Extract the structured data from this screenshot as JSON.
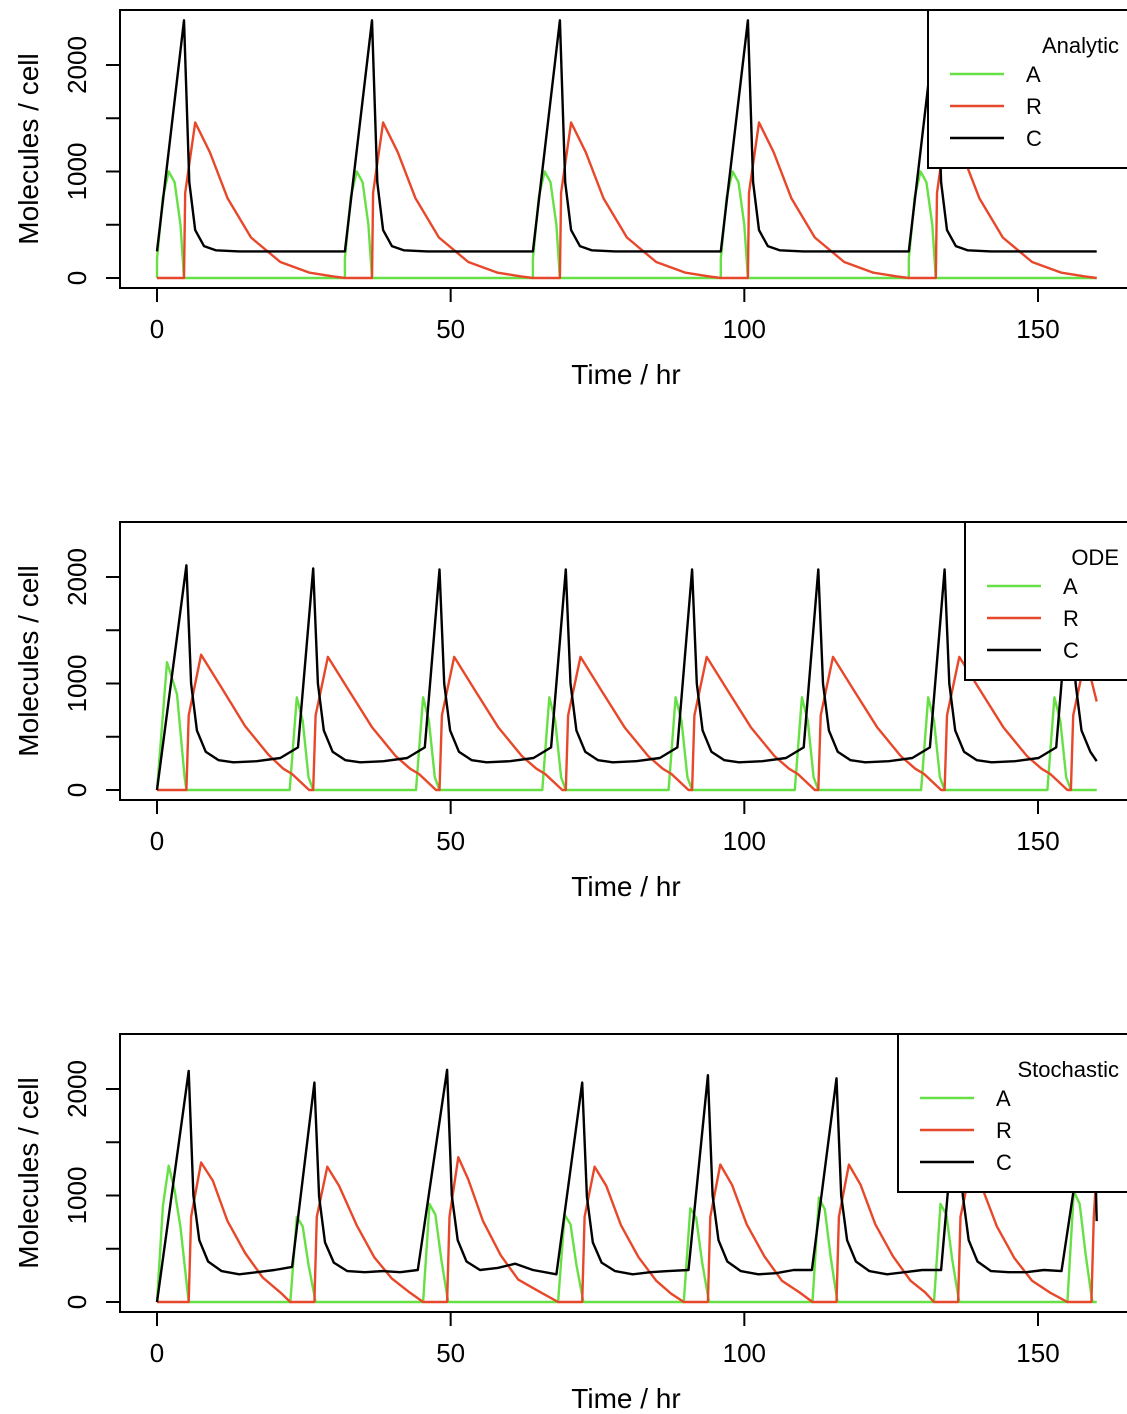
{
  "colors": {
    "A": "#66e044",
    "R": "#e8482a",
    "C": "#000000"
  },
  "chart_data": [
    {
      "type": "line",
      "legend_title": "Analytic",
      "legend_position": "top-right",
      "xlabel": "Time / hr",
      "ylabel": "Molecules / cell",
      "xlim": [
        -6,
        160
      ],
      "ylim": [
        -50,
        2500
      ],
      "x_ticks": [
        0,
        50,
        100,
        150
      ],
      "y_ticks": [
        0,
        1000,
        2000
      ],
      "y_minor_ticks": [
        500,
        1500
      ],
      "grid": false,
      "series": [
        {
          "name": "A",
          "x": [
            0.0,
            0.0,
            1.0,
            2.0,
            3.0,
            4.0,
            4.6,
            32.0,
            32.0,
            33.0,
            34.0,
            35.0,
            36.0,
            36.6,
            64.0,
            64.0,
            65.0,
            66.0,
            67.0,
            68.0,
            68.6,
            96.0,
            96.0,
            97.0,
            98.0,
            99.0,
            100.0,
            100.6,
            128.0,
            128.0,
            129.0,
            130.0,
            131.0,
            132.0,
            132.6,
            160
          ],
          "y": [
            0,
            180,
            760,
            1000,
            900,
            500,
            0,
            0,
            180,
            760,
            1000,
            900,
            500,
            0,
            0,
            180,
            760,
            1000,
            900,
            500,
            0,
            0,
            180,
            760,
            1000,
            900,
            500,
            0,
            0,
            180,
            760,
            1000,
            900,
            500,
            0,
            0
          ]
        },
        {
          "name": "R",
          "x": [
            0.0,
            4.6,
            4.8,
            6.5,
            9,
            12,
            16,
            21,
            26,
            30,
            32.0,
            36.6,
            36.8,
            38.5,
            41,
            44,
            48,
            53,
            58,
            62,
            64.0,
            68.6,
            68.8,
            70.5,
            73,
            76,
            80,
            85,
            90,
            94,
            96.0,
            100.6,
            100.8,
            102.5,
            105,
            108,
            112,
            117,
            122,
            126,
            128.0,
            132.6,
            132.8,
            134.5,
            137,
            140,
            144,
            149,
            154,
            158,
            160
          ],
          "y": [
            0,
            0,
            800,
            1460,
            1180,
            750,
            380,
            150,
            50,
            15,
            0,
            0,
            800,
            1460,
            1180,
            750,
            380,
            150,
            50,
            15,
            0,
            0,
            800,
            1460,
            1180,
            750,
            380,
            150,
            50,
            15,
            0,
            0,
            800,
            1460,
            1180,
            750,
            380,
            150,
            50,
            15,
            0,
            0,
            800,
            1460,
            1180,
            750,
            380,
            150,
            50,
            15,
            0
          ]
        },
        {
          "name": "C",
          "x": [
            0.0,
            4.6,
            5.5,
            6.5,
            8,
            10,
            14,
            32.0,
            36.6,
            37.5,
            38.5,
            40,
            42,
            46,
            64.0,
            68.6,
            69.5,
            70.5,
            72,
            74,
            78,
            96.0,
            100.6,
            101.5,
            102.5,
            104,
            106,
            110,
            128.0,
            132.6,
            133.5,
            134.5,
            136,
            138,
            142,
            160
          ],
          "y": [
            250,
            2420,
            900,
            450,
            300,
            260,
            250,
            250,
            2420,
            900,
            450,
            300,
            260,
            250,
            250,
            2420,
            900,
            450,
            300,
            260,
            250,
            250,
            2420,
            900,
            450,
            300,
            260,
            250,
            250,
            2420,
            900,
            450,
            300,
            260,
            250,
            250
          ]
        }
      ]
    },
    {
      "type": "line",
      "legend_title": "ODE",
      "legend_position": "top-right",
      "xlabel": "Time / hr",
      "ylabel": "Molecules / cell",
      "xlim": [
        -6,
        160
      ],
      "ylim": [
        -50,
        2500
      ],
      "x_ticks": [
        0,
        50,
        100,
        150
      ],
      "y_ticks": [
        0,
        1000,
        2000
      ],
      "y_minor_ticks": [
        500,
        1500
      ],
      "grid": false,
      "series": [
        {
          "name": "A",
          "x": [
            0,
            1.7,
            3.4,
            4.7,
            5.0,
            22.6,
            23.8,
            24.8,
            25.8,
            26.6,
            44.1,
            45.3,
            46.3,
            47.3,
            48.1,
            65.6,
            66.8,
            67.8,
            68.8,
            69.6,
            87.1,
            88.3,
            89.3,
            90.3,
            91.1,
            108.6,
            109.8,
            110.8,
            111.8,
            112.6,
            130.1,
            131.3,
            132.3,
            133.3,
            134.1,
            151.6,
            152.8,
            153.8,
            154.8,
            155.6,
            160
          ],
          "y": [
            0,
            1200,
            900,
            120,
            0,
            0,
            870,
            650,
            120,
            0,
            0,
            870,
            650,
            120,
            0,
            0,
            870,
            650,
            120,
            0,
            0,
            870,
            650,
            120,
            0,
            0,
            870,
            650,
            120,
            0,
            0,
            870,
            650,
            120,
            0,
            0,
            870,
            650,
            120,
            0,
            0
          ]
        },
        {
          "name": "R",
          "x": [
            0,
            5.0,
            5.4,
            7.5,
            11,
            15,
            19,
            21.5,
            23,
            25.9,
            26.6,
            27.0,
            29.1,
            32.6,
            36.6,
            40.6,
            43.1,
            44.6,
            47.5,
            48.1,
            48.5,
            50.6,
            54.1,
            58.1,
            62.1,
            64.6,
            66.1,
            69.0,
            69.6,
            70.0,
            72.1,
            75.6,
            79.6,
            83.6,
            86.1,
            87.6,
            90.5,
            91.1,
            91.5,
            93.6,
            97.1,
            101.1,
            105.1,
            107.6,
            109.1,
            112.0,
            112.6,
            113.0,
            115.1,
            118.6,
            122.6,
            126.6,
            129.1,
            130.6,
            133.5,
            134.1,
            134.5,
            136.6,
            140.1,
            144.1,
            148.1,
            150.6,
            152.1,
            155.0,
            155.6,
            156.0,
            158.1,
            160
          ],
          "y": [
            0,
            0,
            700,
            1270,
            960,
            600,
            330,
            200,
            150,
            0,
            0,
            700,
            1250,
            940,
            590,
            320,
            200,
            150,
            0,
            0,
            700,
            1250,
            940,
            590,
            320,
            200,
            150,
            0,
            0,
            700,
            1250,
            940,
            590,
            320,
            200,
            150,
            0,
            0,
            700,
            1250,
            940,
            590,
            320,
            200,
            150,
            0,
            0,
            700,
            1250,
            940,
            590,
            320,
            200,
            150,
            0,
            0,
            700,
            1250,
            940,
            590,
            320,
            200,
            150,
            0,
            0,
            700,
            1250,
            830
          ]
        },
        {
          "name": "C",
          "x": [
            0,
            5.0,
            5.8,
            6.8,
            8.3,
            10.5,
            13,
            17,
            21,
            24,
            26.6,
            27.4,
            28.4,
            29.9,
            32.1,
            34.6,
            38.6,
            42.6,
            45.6,
            48.1,
            48.9,
            49.9,
            51.4,
            53.6,
            56.1,
            60.1,
            64.1,
            67.1,
            69.6,
            70.4,
            71.4,
            72.9,
            75.1,
            77.6,
            81.6,
            85.6,
            88.6,
            91.1,
            91.9,
            92.9,
            94.4,
            96.6,
            99.1,
            103.1,
            107.1,
            110.1,
            112.6,
            113.4,
            114.4,
            115.9,
            118.1,
            120.6,
            124.6,
            128.6,
            131.6,
            134.1,
            134.9,
            135.9,
            137.4,
            139.6,
            142.1,
            146.1,
            150.1,
            153.1,
            155.6,
            156.4,
            157.4,
            158.9,
            160
          ],
          "y": [
            0,
            2110,
            1000,
            560,
            360,
            280,
            260,
            270,
            300,
            400,
            2080,
            1000,
            560,
            360,
            280,
            260,
            270,
            300,
            400,
            2070,
            1000,
            560,
            360,
            280,
            260,
            270,
            300,
            400,
            2070,
            1000,
            560,
            360,
            280,
            260,
            270,
            300,
            400,
            2070,
            1000,
            560,
            360,
            280,
            260,
            270,
            300,
            400,
            2070,
            1000,
            560,
            360,
            280,
            260,
            270,
            300,
            400,
            2070,
            1000,
            560,
            360,
            280,
            260,
            270,
            300,
            400,
            2070,
            1000,
            560,
            360,
            270
          ]
        }
      ]
    },
    {
      "type": "line",
      "legend_title": "Stochastic",
      "legend_position": "top-right",
      "xlabel": "Time / hr",
      "ylabel": "Molecules / cell",
      "xlim": [
        -6,
        160
      ],
      "ylim": [
        -50,
        2500
      ],
      "x_ticks": [
        0,
        50,
        100,
        150
      ],
      "y_ticks": [
        0,
        1000,
        2000
      ],
      "y_minor_ticks": [
        500,
        1500
      ],
      "grid": false,
      "series": [
        {
          "name": "A",
          "x": [
            0,
            1.0,
            2.0,
            3.0,
            4.0,
            5.2,
            5.4,
            22.7,
            23.8,
            24.8,
            25.8,
            26.8,
            27.0,
            45.3,
            46.4,
            47.4,
            48.4,
            49.4,
            49.6,
            68.3,
            69.4,
            70.4,
            71.4,
            72.4,
            72.6,
            89.7,
            90.8,
            91.8,
            92.8,
            93.8,
            94.0,
            111.6,
            112.7,
            113.7,
            114.7,
            115.7,
            115.9,
            132.3,
            133.4,
            134.4,
            135.4,
            136.4,
            136.6,
            155.0,
            156.1,
            157.1,
            158.1,
            159.1,
            159.3,
            160
          ],
          "y": [
            0,
            900,
            1280,
            1050,
            700,
            100,
            0,
            0,
            800,
            710,
            350,
            60,
            0,
            0,
            920,
            820,
            400,
            60,
            0,
            0,
            820,
            730,
            350,
            60,
            0,
            0,
            880,
            790,
            380,
            60,
            0,
            0,
            980,
            870,
            420,
            60,
            0,
            0,
            920,
            820,
            400,
            60,
            0,
            0,
            1040,
            920,
            450,
            60,
            0,
            0
          ]
        },
        {
          "name": "R",
          "x": [
            0,
            5.4,
            5.8,
            7.5,
            9.5,
            12,
            15,
            18,
            21,
            22.7,
            26.8,
            27.2,
            29,
            31,
            34,
            37,
            40,
            43,
            45.3,
            49.4,
            49.8,
            51.3,
            53,
            55.5,
            58.5,
            61.5,
            65,
            68.3,
            72.4,
            72.8,
            74.5,
            76.5,
            79,
            82,
            85,
            87.5,
            89.7,
            93.8,
            94.2,
            95.9,
            97.9,
            100.4,
            103.4,
            106.4,
            109.4,
            111.6,
            115.7,
            116.1,
            117.8,
            119.8,
            122.3,
            125.3,
            128.3,
            130.8,
            132.3,
            136.4,
            136.8,
            138.5,
            140.5,
            143,
            146,
            149,
            152,
            155.0,
            159.1,
            159.5,
            160
          ],
          "y": [
            0,
            0,
            800,
            1310,
            1140,
            760,
            460,
            230,
            90,
            0,
            0,
            800,
            1270,
            1090,
            720,
            420,
            220,
            90,
            0,
            0,
            800,
            1360,
            1150,
            760,
            440,
            210,
            100,
            0,
            0,
            800,
            1270,
            1090,
            720,
            420,
            200,
            80,
            0,
            0,
            800,
            1290,
            1100,
            730,
            430,
            200,
            90,
            0,
            0,
            800,
            1290,
            1100,
            730,
            430,
            200,
            90,
            0,
            0,
            800,
            1250,
            1070,
            710,
            410,
            200,
            90,
            0,
            0,
            800,
            1250
          ]
        },
        {
          "name": "C",
          "x": [
            0,
            5.4,
            6.2,
            7.2,
            8.7,
            11,
            14,
            17,
            20,
            23,
            26.8,
            27.6,
            28.6,
            30.1,
            32.4,
            35.4,
            38.4,
            41.4,
            44.4,
            49.4,
            50.2,
            51.2,
            52.7,
            55,
            58,
            61,
            64,
            68,
            72.4,
            73.2,
            74.2,
            75.7,
            78,
            81,
            84,
            87,
            90.5,
            93.8,
            94.6,
            95.6,
            97.1,
            99.4,
            102.4,
            105.4,
            108.4,
            111.5,
            115.7,
            116.5,
            117.5,
            119,
            121.3,
            124.3,
            127.3,
            130.3,
            133.5,
            136.4,
            137.2,
            138.2,
            139.7,
            142,
            145,
            148,
            151,
            154,
            159.1,
            159.9,
            160
          ],
          "y": [
            0,
            2170,
            1000,
            580,
            380,
            290,
            260,
            280,
            300,
            330,
            2060,
            990,
            560,
            370,
            290,
            280,
            290,
            280,
            300,
            2180,
            1000,
            580,
            380,
            300,
            320,
            360,
            300,
            260,
            2060,
            990,
            560,
            370,
            290,
            260,
            280,
            290,
            300,
            2130,
            1000,
            580,
            380,
            290,
            260,
            270,
            300,
            300,
            2100,
            1000,
            580,
            380,
            290,
            260,
            280,
            300,
            300,
            2150,
            1000,
            580,
            380,
            290,
            280,
            280,
            300,
            290,
            2160,
            1000,
            760
          ]
        }
      ]
    }
  ]
}
